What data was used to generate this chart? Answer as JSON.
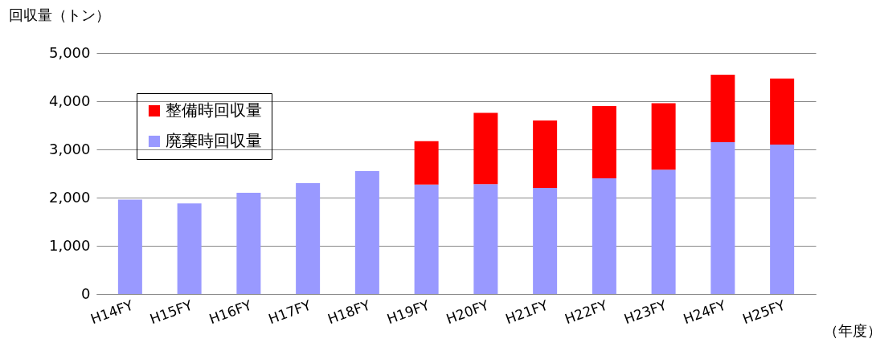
{
  "chart_data": {
    "type": "bar",
    "stacked": true,
    "ylabel": "回収量（トン）",
    "categories": [
      "H14FY",
      "H15FY",
      "H16FY",
      "H17FY",
      "H18FY",
      "H19FY",
      "H20FY",
      "H21FY",
      "H22FY",
      "H23FY",
      "H24FY",
      "H25FY"
    ],
    "series": [
      {
        "name": "廃棄時回収量",
        "color": "#9999ff",
        "values": [
          1960,
          1880,
          2100,
          2300,
          2550,
          2270,
          2280,
          2200,
          2400,
          2580,
          3150,
          3100
        ]
      },
      {
        "name": "整備時回収量",
        "color": "#ff0000",
        "values": [
          null,
          null,
          null,
          null,
          null,
          900,
          1480,
          1400,
          1500,
          1380,
          1400,
          1370
        ]
      }
    ],
    "ylim": [
      0,
      5000
    ],
    "yticks": [
      {
        "value": 0,
        "label": "0"
      },
      {
        "value": 1000,
        "label": "1,000"
      },
      {
        "value": 2000,
        "label": "2,000"
      },
      {
        "value": 3000,
        "label": "3,000"
      },
      {
        "value": 4000,
        "label": "4,000"
      },
      {
        "value": 5000,
        "label": "5,000"
      }
    ],
    "grid": "y",
    "legend": "top left",
    "annotations": [
      "（年度）"
    ]
  }
}
